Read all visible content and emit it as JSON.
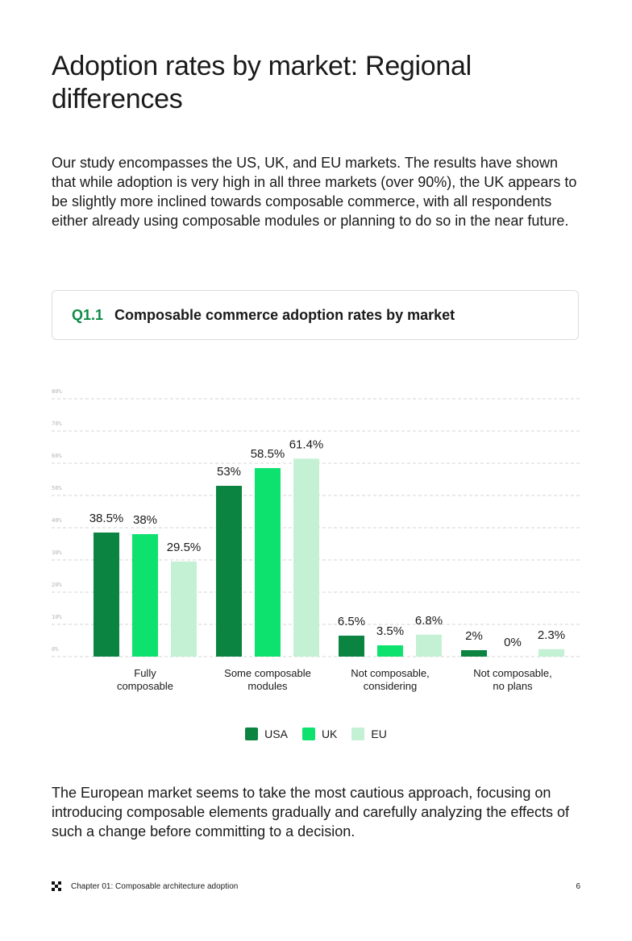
{
  "page": {
    "title": "Adoption rates by market: Regional differences",
    "intro": "Our study encompasses the US, UK, and EU markets. The results have shown that while adoption is very high in all three markets (over 90%), the UK appears to be slightly more inclined towards composable commerce, with all respondents either already using composable modules or planning to do so in the near future.",
    "outro": "The European market seems to take the most cautious approach, focusing on introducing composable elements gradually and carefully analyzing the effects of such a change before committing to a decision."
  },
  "question": {
    "number": "Q1.1",
    "title": "Composable commerce adoption rates by market"
  },
  "footer": {
    "chapter": "Chapter 01: Composable architecture adoption",
    "page_number": "6",
    "logo_icon": "grid-x-logo-icon"
  },
  "chart_data": {
    "type": "bar",
    "title": "Composable commerce adoption rates by market",
    "xlabel": "",
    "ylabel": "",
    "ylim": [
      0,
      80
    ],
    "yticks": [
      0,
      10,
      20,
      30,
      40,
      50,
      60,
      70,
      80
    ],
    "ytick_labels": [
      "0%",
      "10%",
      "20%",
      "30%",
      "40%",
      "50%",
      "60%",
      "70%",
      "80%"
    ],
    "grid": true,
    "legend_position": "bottom-center",
    "categories": [
      [
        "Fully",
        "composable"
      ],
      [
        "Some composable",
        "modules"
      ],
      [
        "Not composable,",
        "considering"
      ],
      [
        "Not composable,",
        "no plans"
      ]
    ],
    "series": [
      {
        "name": "USA",
        "color": "#0b8442",
        "values": [
          38.5,
          53,
          6.5,
          2
        ],
        "labels": [
          "38.5%",
          "53%",
          "6.5%",
          "2%"
        ]
      },
      {
        "name": "UK",
        "color": "#0ee26e",
        "values": [
          38,
          58.5,
          3.5,
          0
        ],
        "labels": [
          "38%",
          "58.5%",
          "3.5%",
          "0%"
        ]
      },
      {
        "name": "EU",
        "color": "#c4f1d3",
        "values": [
          29.5,
          61.4,
          6.8,
          2.3
        ],
        "labels": [
          "29.5%",
          "61.4%",
          "6.8%",
          "2.3%"
        ]
      }
    ]
  }
}
